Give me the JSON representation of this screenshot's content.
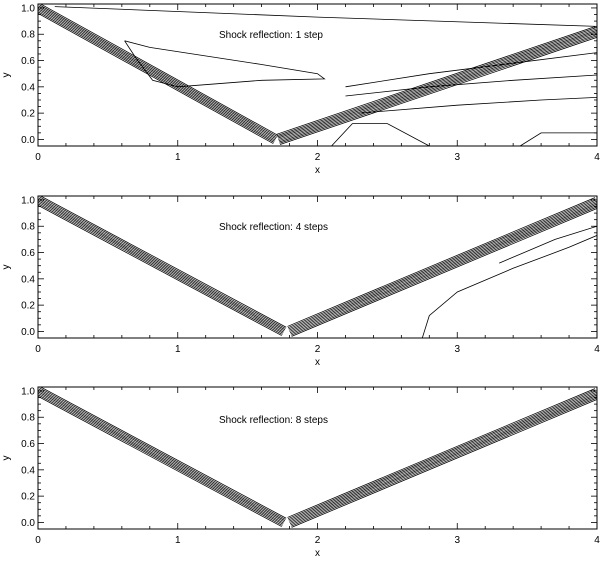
{
  "chart_data": [
    {
      "type": "contour",
      "title": "Shock reflection:  1 step",
      "xlabel": "x",
      "ylabel": "y",
      "xlim": [
        0,
        4
      ],
      "ylim": [
        -0.05,
        1.03
      ],
      "xticks": [
        "0",
        "1",
        "2",
        "3",
        "4"
      ],
      "yticks": [
        "0.0",
        "0.2",
        "0.4",
        "0.6",
        "0.8",
        "1.0"
      ],
      "incident_shock": {
        "from": [
          0.0,
          1.0
        ],
        "to": [
          1.7,
          0.0
        ],
        "contour_lines": 8
      },
      "reflected_shock": {
        "from": [
          1.72,
          0.0
        ],
        "to": [
          4.0,
          0.82
        ],
        "contour_lines": 9
      },
      "extra_contours": [
        [
          [
            0.12,
            1.01
          ],
          [
            2.0,
            0.93
          ],
          [
            4.0,
            0.86
          ]
        ],
        [
          [
            0.62,
            0.75
          ],
          [
            0.8,
            0.7
          ],
          [
            1.6,
            0.57
          ],
          [
            2.0,
            0.5
          ],
          [
            2.05,
            0.46
          ],
          [
            1.6,
            0.45
          ],
          [
            1.0,
            0.4
          ],
          [
            0.82,
            0.45
          ],
          [
            0.7,
            0.62
          ],
          [
            0.62,
            0.75
          ]
        ],
        [
          [
            2.2,
            0.4
          ],
          [
            2.8,
            0.5
          ],
          [
            3.4,
            0.58
          ],
          [
            4.0,
            0.66
          ]
        ],
        [
          [
            2.2,
            0.33
          ],
          [
            2.8,
            0.4
          ],
          [
            3.4,
            0.45
          ],
          [
            4.0,
            0.49
          ]
        ],
        [
          [
            2.3,
            0.2
          ],
          [
            3.0,
            0.26
          ],
          [
            3.6,
            0.3
          ],
          [
            4.0,
            0.32
          ]
        ],
        [
          [
            2.1,
            -0.05
          ],
          [
            2.25,
            0.12
          ],
          [
            2.5,
            0.12
          ],
          [
            2.8,
            -0.05
          ]
        ],
        [
          [
            3.45,
            -0.05
          ],
          [
            3.6,
            0.05
          ],
          [
            4.0,
            0.05
          ]
        ]
      ]
    },
    {
      "type": "contour",
      "title": "Shock reflection:  4 steps",
      "xlabel": "x",
      "ylabel": "y",
      "xlim": [
        0,
        4
      ],
      "ylim": [
        -0.05,
        1.03
      ],
      "xticks": [
        "0",
        "1",
        "2",
        "3",
        "4"
      ],
      "yticks": [
        "0.0",
        "0.2",
        "0.4",
        "0.6",
        "0.8",
        "1.0"
      ],
      "incident_shock": {
        "from": [
          0.0,
          1.0
        ],
        "to": [
          1.76,
          0.0
        ],
        "contour_lines": 8
      },
      "reflected_shock": {
        "from": [
          1.8,
          0.0
        ],
        "to": [
          4.0,
          0.98
        ],
        "contour_lines": 9
      },
      "extra_contours": [
        [
          [
            2.75,
            -0.05
          ],
          [
            2.8,
            0.12
          ],
          [
            3.0,
            0.3
          ],
          [
            3.4,
            0.48
          ],
          [
            3.8,
            0.64
          ],
          [
            4.0,
            0.73
          ]
        ],
        [
          [
            3.3,
            0.52
          ],
          [
            3.7,
            0.7
          ],
          [
            4.0,
            0.8
          ]
        ]
      ]
    },
    {
      "type": "contour",
      "title": "Shock reflection:  8 steps",
      "xlabel": "x",
      "ylabel": "y",
      "xlim": [
        0,
        4
      ],
      "ylim": [
        -0.05,
        1.03
      ],
      "xticks": [
        "0",
        "1",
        "2",
        "3",
        "4"
      ],
      "yticks": [
        "0.0",
        "0.2",
        "0.4",
        "0.6",
        "0.8",
        "1.0"
      ],
      "incident_shock": {
        "from": [
          0.0,
          1.0
        ],
        "to": [
          1.76,
          0.0
        ],
        "contour_lines": 8
      },
      "reflected_shock": {
        "from": [
          1.8,
          0.0
        ],
        "to": [
          4.0,
          0.98
        ],
        "contour_lines": 9
      },
      "extra_contours": []
    }
  ]
}
